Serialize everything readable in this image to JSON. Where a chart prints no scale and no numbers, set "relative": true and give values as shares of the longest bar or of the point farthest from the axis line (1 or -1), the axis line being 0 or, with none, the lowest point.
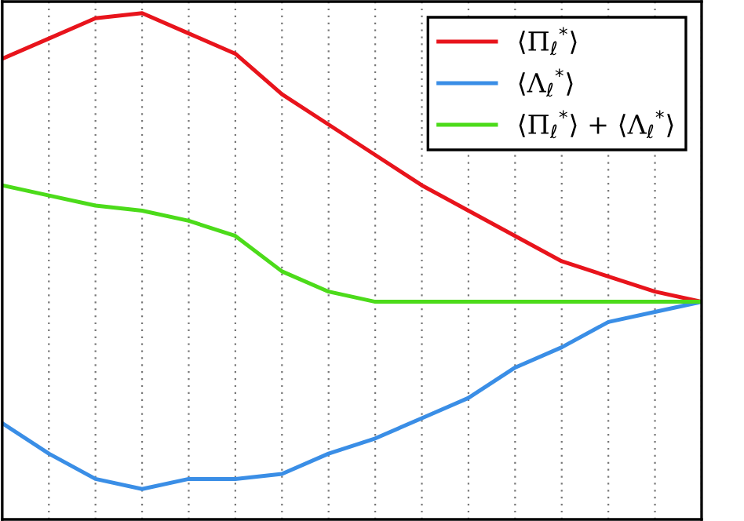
{
  "chart_data": {
    "type": "line",
    "relative": true,
    "grid": true,
    "legend": "top right",
    "line_style": "solid",
    "marker": "none",
    "categories": [
      null,
      null,
      null,
      null,
      null,
      null,
      null,
      null,
      null,
      null,
      null,
      null,
      null,
      null,
      null,
      null
    ],
    "series": [
      {
        "name": "⟨Π$_{ℓ}$$^{*}$⟩",
        "color": "#e8141c",
        "values": [
          0.91,
          0.95,
          0.99,
          1.0,
          0.96,
          0.92,
          0.84,
          0.78,
          0.72,
          0.66,
          0.61,
          0.56,
          0.51,
          0.48,
          0.45,
          0.43
        ]
      },
      {
        "name": "⟨Λ$_{ℓ}$$^{*}$⟩",
        "color": "#3a8ee6",
        "values": [
          0.19,
          0.13,
          0.08,
          0.06,
          0.08,
          0.08,
          0.09,
          0.13,
          0.16,
          0.2,
          0.24,
          0.3,
          0.34,
          0.39,
          0.41,
          0.43
        ]
      },
      {
        "name": "⟨Π$_{ℓ}$$^{*}$⟩ + ⟨Λ$_{ℓ}$$^{*}$⟩",
        "color": "#4cdb1a",
        "values": [
          0.66,
          0.64,
          0.62,
          0.61,
          0.59,
          0.56,
          0.49,
          0.45,
          0.43,
          0.43,
          0.43,
          0.43,
          0.43,
          0.43,
          0.43,
          0.43
        ]
      }
    ]
  }
}
